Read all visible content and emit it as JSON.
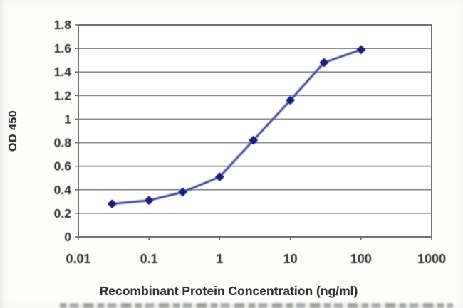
{
  "figure": {
    "kind": "elisa-standard-curve"
  },
  "chart_data": {
    "type": "line",
    "x_scale": "log",
    "x": [
      0.03,
      0.1,
      0.3,
      1,
      3,
      10,
      30,
      100
    ],
    "y": [
      0.28,
      0.31,
      0.38,
      0.51,
      0.82,
      1.16,
      1.48,
      1.59
    ],
    "title": "",
    "xlabel": "Recombinant Protein Concentration (ng/ml)",
    "ylabel": "OD 450",
    "xlim": [
      0.01,
      1000
    ],
    "ylim": [
      0,
      1.8
    ],
    "x_tick_values": [
      0.01,
      0.1,
      1,
      10,
      100,
      1000
    ],
    "x_tick_labels": [
      "0.01",
      "0.1",
      "1",
      "10",
      "100",
      "1000"
    ],
    "y_tick_values": [
      0,
      0.2,
      0.4,
      0.6,
      0.8,
      1,
      1.2,
      1.4,
      1.6,
      1.8
    ],
    "y_tick_labels": [
      "0",
      "0.2",
      "0.4",
      "0.6",
      "0.8",
      "1",
      "1.2",
      "1.4",
      "1.6",
      "1.8"
    ],
    "grid": "horizontal",
    "legend": "none",
    "marker_shape": "diamond",
    "colors": {
      "line": "#4646A2",
      "line_halo": "#8A8AC4",
      "marker": "#1C1C80",
      "grid": "#8F8F8F",
      "plot_border": "#737373",
      "tick_text": "#2E2E2E",
      "background": "#FDFDFC"
    }
  }
}
